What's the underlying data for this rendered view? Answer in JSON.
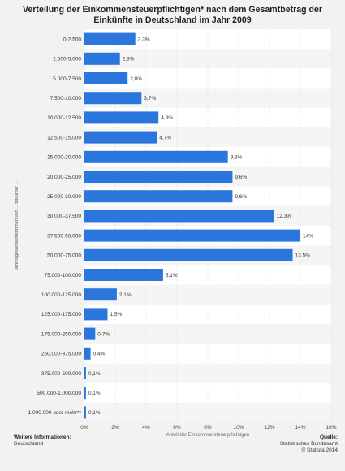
{
  "chart_data": {
    "type": "bar",
    "orientation": "horizontal",
    "title": "Verteilung der Einkommensteuerpflichtigen* nach dem Gesamtbetrag der Einkünfte in Deutschland im Jahr 2009",
    "xlabel": "Anteil der Einkommensteuerpflichtigen",
    "ylabel": "Jahresgesamteinkommen von ... bis unter ...",
    "categories": [
      "0-2.500",
      "2.500-5.000",
      "5.000-7.500",
      "7.500-10.000",
      "10.000-12.500",
      "12.500-15.000",
      "15.000-20.000",
      "20.000-25.000",
      "25.000-30.000",
      "30.000-37.500",
      "37.500-50.000",
      "50.000-75.000",
      "75.000-100.000",
      "100.000-125.000",
      "125.000-175.000",
      "175.000-250.000",
      "250.000-375.000",
      "375.000-500.000",
      "500.000-1.000.000",
      "1.000.000 oder mehr**"
    ],
    "values": [
      3.3,
      2.3,
      2.8,
      3.7,
      4.8,
      4.7,
      9.3,
      9.6,
      9.6,
      12.3,
      14,
      13.5,
      5.1,
      2.1,
      1.5,
      0.7,
      0.4,
      0.1,
      0.1,
      0.1
    ],
    "value_labels": [
      "3,3%",
      "2,3%",
      "2,8%",
      "3,7%",
      "4,8%",
      "4,7%",
      "9,3%",
      "9,6%",
      "9,6%",
      "12,3%",
      "14%",
      "13,5%",
      "5,1%",
      "2,1%",
      "1,5%",
      "0,7%",
      "0,4%",
      "0,1%",
      "0,1%",
      "0,1%"
    ],
    "xlim": [
      0,
      16
    ],
    "x_ticks": [
      "0%",
      "2%",
      "4%",
      "6%",
      "8%",
      "10%",
      "12%",
      "14%",
      "16%"
    ],
    "bar_color": "#2a76dd",
    "grid": true
  },
  "footer": {
    "left_heading": "Weitere Informationen:",
    "left_text": "Deutschland",
    "right_heading": "Quelle:",
    "right_line1": "Statistisches Bundesamt",
    "right_line2": "© Statista 2014"
  }
}
